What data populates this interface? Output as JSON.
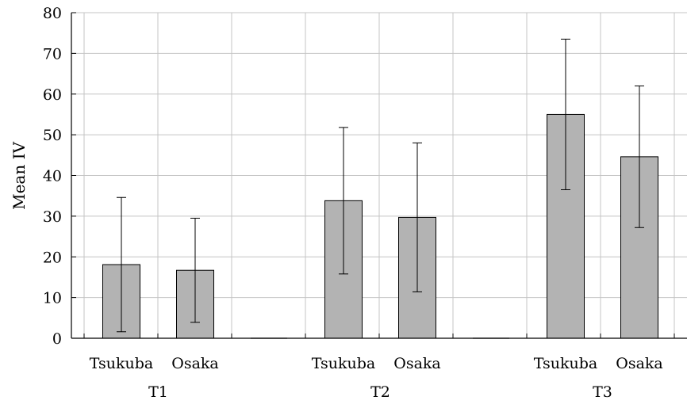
{
  "chart_data": {
    "type": "bar",
    "ylabel": "Mean IV",
    "ylim": [
      0,
      80
    ],
    "yticks": [
      "0",
      "10",
      "20",
      "30",
      "40",
      "50",
      "60",
      "70",
      "80"
    ],
    "grid": true,
    "bar_color": "#b3b3b3",
    "groups": [
      {
        "label": "T1",
        "bars": [
          {
            "category": "Tsukuba",
            "value": 18.1,
            "err_low": 1.6,
            "err_high": 34.6
          },
          {
            "category": "Osaka",
            "value": 16.7,
            "err_low": 3.9,
            "err_high": 29.5
          }
        ]
      },
      {
        "label": "T2",
        "bars": [
          {
            "category": "Tsukuba",
            "value": 33.8,
            "err_low": 15.8,
            "err_high": 51.8
          },
          {
            "category": "Osaka",
            "value": 29.7,
            "err_low": 11.4,
            "err_high": 48.0
          }
        ]
      },
      {
        "label": "T3",
        "bars": [
          {
            "category": "Tsukuba",
            "value": 55.0,
            "err_low": 36.5,
            "err_high": 73.5
          },
          {
            "category": "Osaka",
            "value": 44.6,
            "err_low": 27.2,
            "err_high": 62.0
          }
        ]
      }
    ]
  }
}
